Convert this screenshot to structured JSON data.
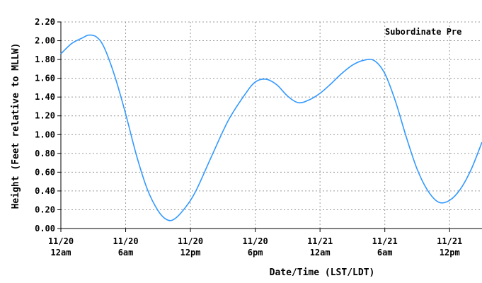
{
  "chart_data": {
    "type": "line",
    "xlabel": "Date/Time (LST/LDT)",
    "ylabel": "Height (Feet relative to MLLW)",
    "legend": "Subordinate Pre",
    "legend_position": "top-right",
    "grid": true,
    "line_color": "#3399ff",
    "ylim": [
      0,
      2.2
    ],
    "xlim": [
      0,
      39
    ],
    "y_ticks": [
      {
        "value": 0.0,
        "label": "0.00"
      },
      {
        "value": 0.2,
        "label": "0.20"
      },
      {
        "value": 0.4,
        "label": "0.40"
      },
      {
        "value": 0.6,
        "label": "0.60"
      },
      {
        "value": 0.8,
        "label": "0.80"
      },
      {
        "value": 1.0,
        "label": "1.00"
      },
      {
        "value": 1.2,
        "label": "1.20"
      },
      {
        "value": 1.4,
        "label": "1.40"
      },
      {
        "value": 1.6,
        "label": "1.60"
      },
      {
        "value": 1.8,
        "label": "1.80"
      },
      {
        "value": 2.0,
        "label": "2.00"
      },
      {
        "value": 2.2,
        "label": "2.20"
      }
    ],
    "x_ticks": [
      {
        "value": 0,
        "label_date": "11/20",
        "label_time": "12am"
      },
      {
        "value": 6,
        "label_date": "11/20",
        "label_time": "6am"
      },
      {
        "value": 12,
        "label_date": "11/20",
        "label_time": "12pm"
      },
      {
        "value": 18,
        "label_date": "11/20",
        "label_time": "6pm"
      },
      {
        "value": 24,
        "label_date": "11/21",
        "label_time": "12am"
      },
      {
        "value": 30,
        "label_date": "11/21",
        "label_time": "6am"
      },
      {
        "value": 36,
        "label_date": "11/21",
        "label_time": "12pm"
      }
    ],
    "series": [
      {
        "x": [
          0,
          1,
          2,
          2.6,
          3.3,
          4,
          5,
          6,
          7,
          8,
          9,
          9.8,
          10.5,
          11.5,
          12.5,
          14,
          15.5,
          17,
          18,
          19,
          20,
          21,
          22,
          23,
          24,
          25,
          26,
          27,
          28,
          29,
          30,
          31,
          32,
          33,
          34,
          35,
          36,
          37,
          38,
          39
        ],
        "y": [
          1.86,
          1.97,
          2.03,
          2.06,
          2.04,
          1.93,
          1.62,
          1.22,
          0.78,
          0.42,
          0.19,
          0.095,
          0.1,
          0.22,
          0.4,
          0.78,
          1.15,
          1.42,
          1.56,
          1.59,
          1.53,
          1.41,
          1.34,
          1.37,
          1.44,
          1.54,
          1.65,
          1.74,
          1.79,
          1.79,
          1.65,
          1.35,
          0.97,
          0.63,
          0.4,
          0.28,
          0.3,
          0.42,
          0.63,
          0.92
        ]
      }
    ]
  }
}
